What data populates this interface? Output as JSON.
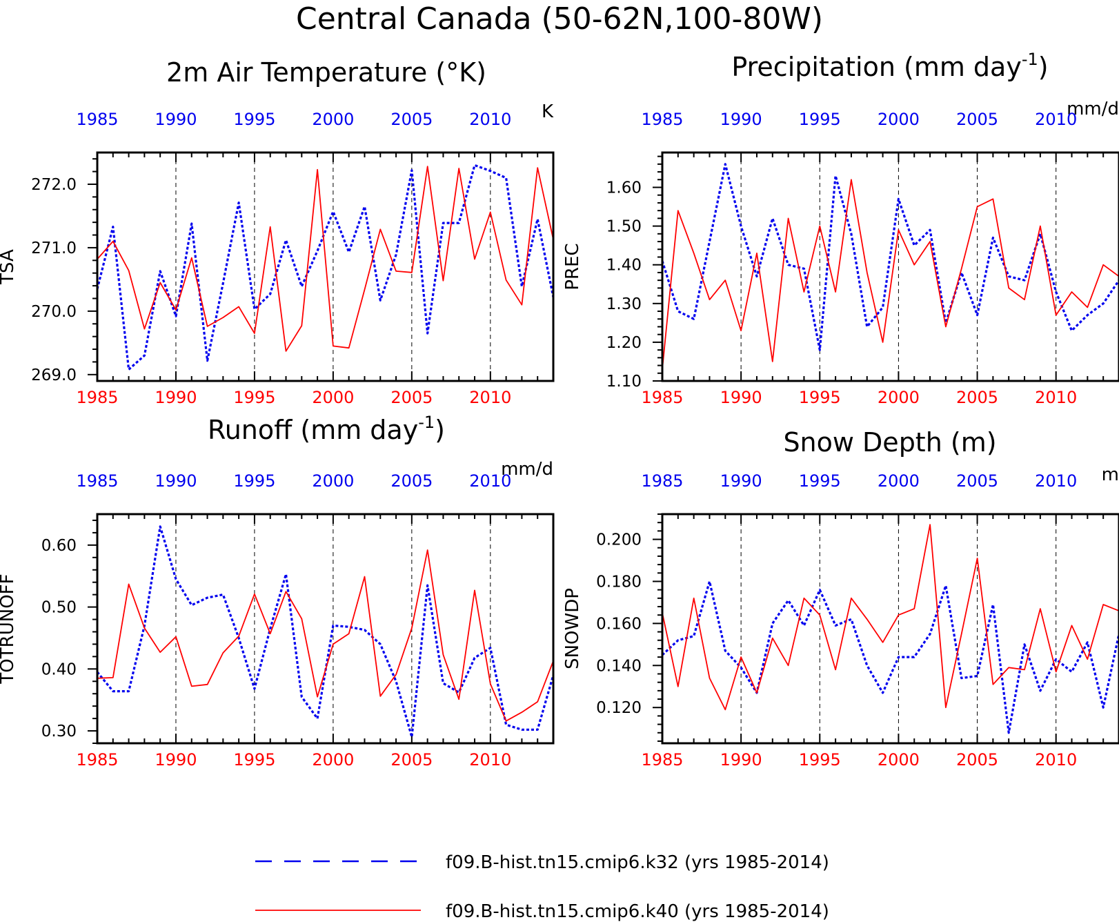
{
  "title": "Central Canada (50-62N,100-80W)",
  "colors": {
    "k32": "#0000ee",
    "k40": "#ff0000",
    "axis": "#000000"
  },
  "legend": [
    {
      "label": "f09.B-hist.tn15.cmip6.k32 (yrs 1985-2014)",
      "color": "#0000ee",
      "style": "dashed"
    },
    {
      "label": "f09.B-hist.tn15.cmip6.k40 (yrs 1985-2014)",
      "color": "#ff0000",
      "style": "solid"
    }
  ],
  "chart_data": [
    {
      "type": "line",
      "title": "2m Air Temperature (°K)",
      "units": "K",
      "ylabel": "TSA",
      "xlim": [
        1985,
        2014
      ],
      "ylim": [
        268.9,
        272.5
      ],
      "yticks": [
        269.0,
        270.0,
        271.0,
        272.0
      ],
      "ytick_labels": [
        "269.0",
        "270.0",
        "271.0",
        "272.0"
      ],
      "xticks": [
        1985,
        1990,
        1995,
        2000,
        2005,
        2010
      ],
      "x": [
        1985,
        1986,
        1987,
        1988,
        1989,
        1990,
        1991,
        1992,
        1993,
        1994,
        1995,
        1996,
        1997,
        1998,
        1999,
        2000,
        2001,
        2002,
        2003,
        2004,
        2005,
        2006,
        2007,
        2008,
        2009,
        2010,
        2011,
        2012,
        2013,
        2014
      ],
      "series": [
        {
          "name": "f09.B-hist.tn15.cmip6.k32",
          "color": "#0000ee",
          "style": "dashed",
          "values": [
            270.35,
            271.33,
            269.08,
            269.3,
            270.63,
            269.92,
            271.38,
            269.22,
            270.44,
            271.71,
            270.03,
            270.27,
            271.12,
            270.39,
            270.95,
            271.57,
            270.93,
            271.65,
            270.17,
            270.89,
            272.22,
            269.65,
            271.39,
            271.39,
            272.3,
            272.21,
            272.1,
            270.39,
            271.45,
            270.22
          ]
        },
        {
          "name": "f09.B-hist.tn15.cmip6.k40",
          "color": "#ff0000",
          "style": "solid",
          "values": [
            270.82,
            271.1,
            270.64,
            269.72,
            270.45,
            270.02,
            270.84,
            269.76,
            269.9,
            270.07,
            269.65,
            271.33,
            269.37,
            269.77,
            272.23,
            269.45,
            269.42,
            270.34,
            271.29,
            270.63,
            270.61,
            272.28,
            270.48,
            272.25,
            270.82,
            271.56,
            270.49,
            270.1,
            272.26,
            271.13
          ]
        }
      ]
    },
    {
      "type": "line",
      "title": "Precipitation (mm day",
      "title_sup": "-1",
      "title_end": ")",
      "units": "mm/d",
      "ylabel": "PREC",
      "xlim": [
        1985,
        2014
      ],
      "ylim": [
        1.1,
        1.69
      ],
      "yticks": [
        1.1,
        1.2,
        1.3,
        1.4,
        1.5,
        1.6
      ],
      "ytick_labels": [
        "1.10",
        "1.20",
        "1.30",
        "1.40",
        "1.50",
        "1.60"
      ],
      "xticks": [
        1985,
        1990,
        1995,
        2000,
        2005,
        2010
      ],
      "x": [
        1985,
        1986,
        1987,
        1988,
        1989,
        1990,
        1991,
        1992,
        1993,
        1994,
        1995,
        1996,
        1997,
        1998,
        1999,
        2000,
        2001,
        2002,
        2003,
        2004,
        2005,
        2006,
        2007,
        2008,
        2009,
        2010,
        2011,
        2012,
        2013,
        2014
      ],
      "series": [
        {
          "name": "f09.B-hist.tn15.cmip6.k32",
          "color": "#0000ee",
          "style": "dashed",
          "values": [
            1.41,
            1.28,
            1.26,
            1.46,
            1.66,
            1.5,
            1.37,
            1.52,
            1.4,
            1.39,
            1.18,
            1.63,
            1.48,
            1.24,
            1.29,
            1.57,
            1.45,
            1.49,
            1.25,
            1.38,
            1.27,
            1.47,
            1.37,
            1.36,
            1.48,
            1.33,
            1.23,
            1.27,
            1.3,
            1.36
          ]
        },
        {
          "name": "f09.B-hist.tn15.cmip6.k40",
          "color": "#ff0000",
          "style": "solid",
          "values": [
            1.13,
            1.54,
            1.43,
            1.31,
            1.36,
            1.23,
            1.43,
            1.15,
            1.52,
            1.33,
            1.5,
            1.33,
            1.62,
            1.38,
            1.2,
            1.49,
            1.4,
            1.46,
            1.24,
            1.39,
            1.55,
            1.57,
            1.34,
            1.31,
            1.5,
            1.27,
            1.33,
            1.29,
            1.4,
            1.37
          ]
        }
      ]
    },
    {
      "type": "line",
      "title": "Runoff (mm day",
      "title_sup": "-1",
      "title_end": ")",
      "units": "mm/d",
      "ylabel": "TOTRUNOFF",
      "xlim": [
        1985,
        2014
      ],
      "ylim": [
        0.28,
        0.65
      ],
      "yticks": [
        0.3,
        0.4,
        0.5,
        0.6
      ],
      "ytick_labels": [
        "0.30",
        "0.40",
        "0.50",
        "0.60"
      ],
      "xticks": [
        1985,
        1990,
        1995,
        2000,
        2005,
        2010
      ],
      "x": [
        1985,
        1986,
        1987,
        1988,
        1989,
        1990,
        1991,
        1992,
        1993,
        1994,
        1995,
        1996,
        1997,
        1998,
        1999,
        2000,
        2001,
        2002,
        2003,
        2004,
        2005,
        2006,
        2007,
        2008,
        2009,
        2010,
        2011,
        2012,
        2013,
        2014
      ],
      "series": [
        {
          "name": "f09.B-hist.tn15.cmip6.k32",
          "color": "#0000ee",
          "style": "dashed",
          "values": [
            0.395,
            0.364,
            0.364,
            0.47,
            0.63,
            0.545,
            0.503,
            0.515,
            0.52,
            0.45,
            0.368,
            0.465,
            0.553,
            0.355,
            0.32,
            0.47,
            0.468,
            0.463,
            0.44,
            0.38,
            0.29,
            0.535,
            0.377,
            0.362,
            0.418,
            0.434,
            0.31,
            0.302,
            0.302,
            0.39
          ]
        },
        {
          "name": "f09.B-hist.tn15.cmip6.k40",
          "color": "#ff0000",
          "style": "solid",
          "values": [
            0.385,
            0.386,
            0.537,
            0.466,
            0.427,
            0.452,
            0.372,
            0.375,
            0.426,
            0.453,
            0.521,
            0.457,
            0.525,
            0.481,
            0.355,
            0.44,
            0.457,
            0.549,
            0.356,
            0.391,
            0.466,
            0.592,
            0.423,
            0.351,
            0.527,
            0.376,
            0.316,
            0.33,
            0.347,
            0.413
          ]
        }
      ]
    },
    {
      "type": "line",
      "title": "Snow Depth (m)",
      "units": "m",
      "ylabel": "SNOWDP",
      "xlim": [
        1985,
        2014
      ],
      "ylim": [
        0.103,
        0.212
      ],
      "yticks": [
        0.12,
        0.14,
        0.16,
        0.18,
        0.2
      ],
      "ytick_labels": [
        "0.120",
        "0.140",
        "0.160",
        "0.180",
        "0.200"
      ],
      "xticks": [
        1985,
        1990,
        1995,
        2000,
        2005,
        2010
      ],
      "x": [
        1985,
        1986,
        1987,
        1988,
        1989,
        1990,
        1991,
        1992,
        1993,
        1994,
        1995,
        1996,
        1997,
        1998,
        1999,
        2000,
        2001,
        2002,
        2003,
        2004,
        2005,
        2006,
        2007,
        2008,
        2009,
        2010,
        2011,
        2012,
        2013,
        2014
      ],
      "series": [
        {
          "name": "f09.B-hist.tn15.cmip6.k32",
          "color": "#0000ee",
          "style": "dashed",
          "values": [
            0.145,
            0.152,
            0.154,
            0.18,
            0.147,
            0.139,
            0.127,
            0.16,
            0.171,
            0.159,
            0.176,
            0.159,
            0.162,
            0.14,
            0.127,
            0.144,
            0.144,
            0.155,
            0.178,
            0.134,
            0.135,
            0.169,
            0.108,
            0.15,
            0.128,
            0.143,
            0.137,
            0.151,
            0.12,
            0.155
          ]
        },
        {
          "name": "f09.B-hist.tn15.cmip6.k40",
          "color": "#ff0000",
          "style": "solid",
          "values": [
            0.165,
            0.13,
            0.172,
            0.134,
            0.119,
            0.144,
            0.127,
            0.153,
            0.14,
            0.172,
            0.164,
            0.138,
            0.172,
            0.162,
            0.151,
            0.164,
            0.167,
            0.207,
            0.12,
            0.155,
            0.191,
            0.131,
            0.139,
            0.138,
            0.167,
            0.137,
            0.159,
            0.143,
            0.169,
            0.166
          ]
        }
      ]
    }
  ]
}
